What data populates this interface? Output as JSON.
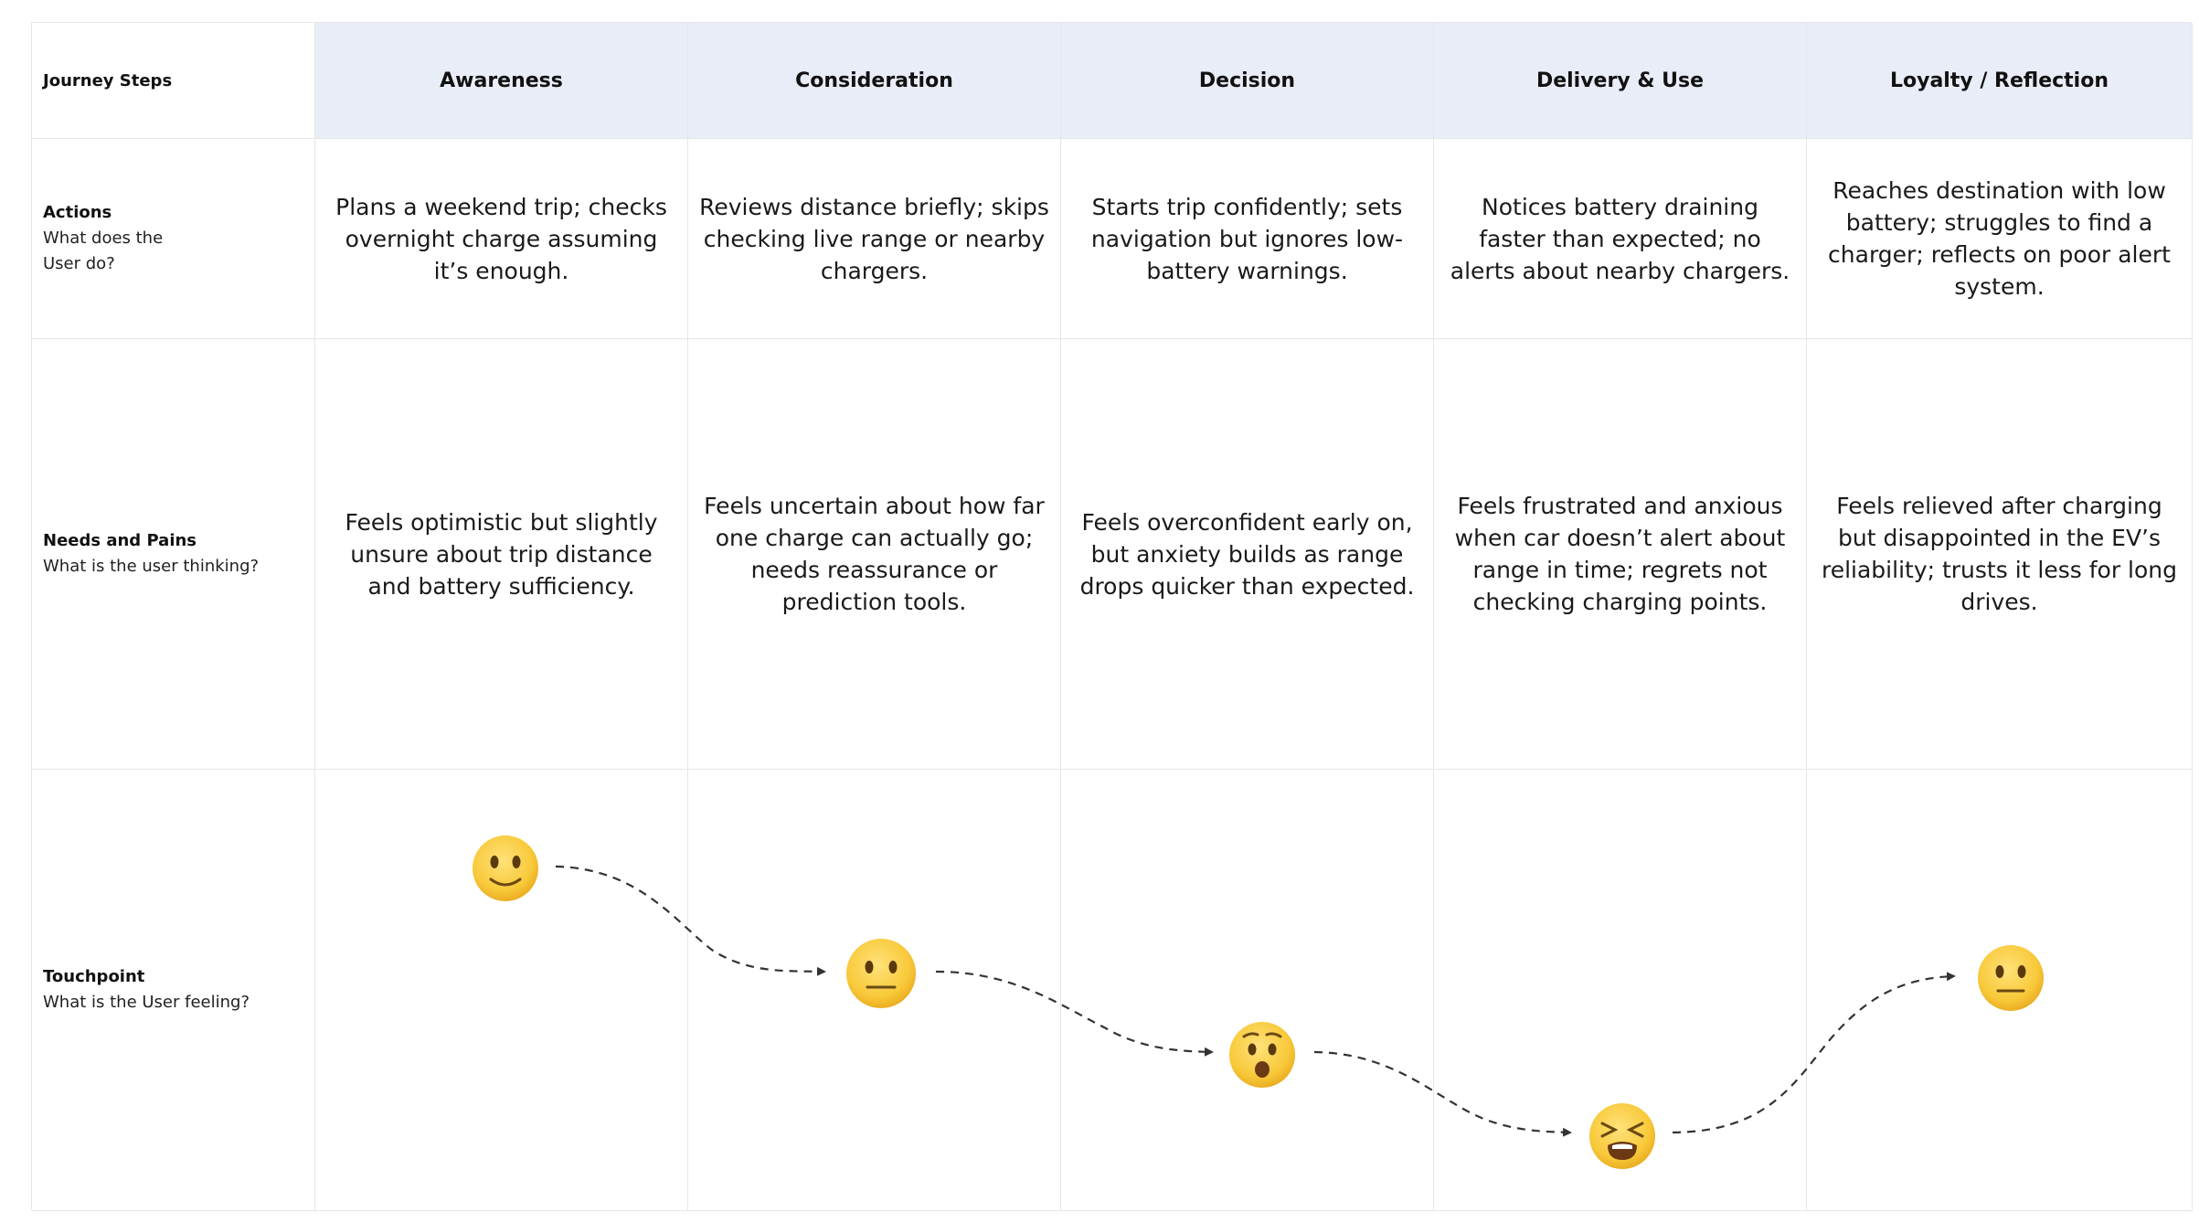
{
  "header": {
    "corner_label": "Journey Steps",
    "stages": [
      "Awareness",
      "Consideration",
      "Decision",
      "Delivery & Use",
      "Loyalty / Reflection"
    ]
  },
  "rows": [
    {
      "title": "Actions",
      "subtitle": "What does the User do?",
      "cells": [
        "Plans a weekend trip; checks overnight charge assuming it’s enough.",
        "Reviews distance briefly; skips checking live range or nearby chargers.",
        "Starts trip confidently; sets navigation but ignores low-battery warnings.",
        "Notices battery draining faster than expected; no alerts about nearby chargers.",
        "Reaches destination with low battery; struggles to find a charger; reflects on poor alert system."
      ]
    },
    {
      "title": "Needs and Pains",
      "subtitle": "What is the user thinking?",
      "cells": [
        "Feels optimistic but slightly unsure about trip distance and battery sufficiency.",
        "Feels uncertain about how far one charge can actually go; needs reassurance or prediction tools.",
        "Feels overconfident early on, but anxiety builds as range drops quicker than expected.",
        "Feels frustrated and anxious when car doesn’t alert about range in time; regrets not checking charging points.",
        "Feels relieved after charging but disappointed in the EV’s reliability; trusts it less for long drives."
      ]
    },
    {
      "title": "Touchpoint",
      "subtitle": "What is the User feeling?"
    }
  ],
  "emotions": [
    {
      "stage": "Awareness",
      "icon": "slightly-smiling-face-icon"
    },
    {
      "stage": "Consideration",
      "icon": "neutral-face-icon"
    },
    {
      "stage": "Decision",
      "icon": "worried-face-icon"
    },
    {
      "stage": "Delivery & Use",
      "icon": "tired-face-icon"
    },
    {
      "stage": "Loyalty / Reflection",
      "icon": "neutral-face-icon"
    }
  ],
  "colors": {
    "header_bg": "#e9edf8",
    "grid_line": "#e6e6e6",
    "face_fill": "#f6c53a",
    "connector": "#333333"
  }
}
